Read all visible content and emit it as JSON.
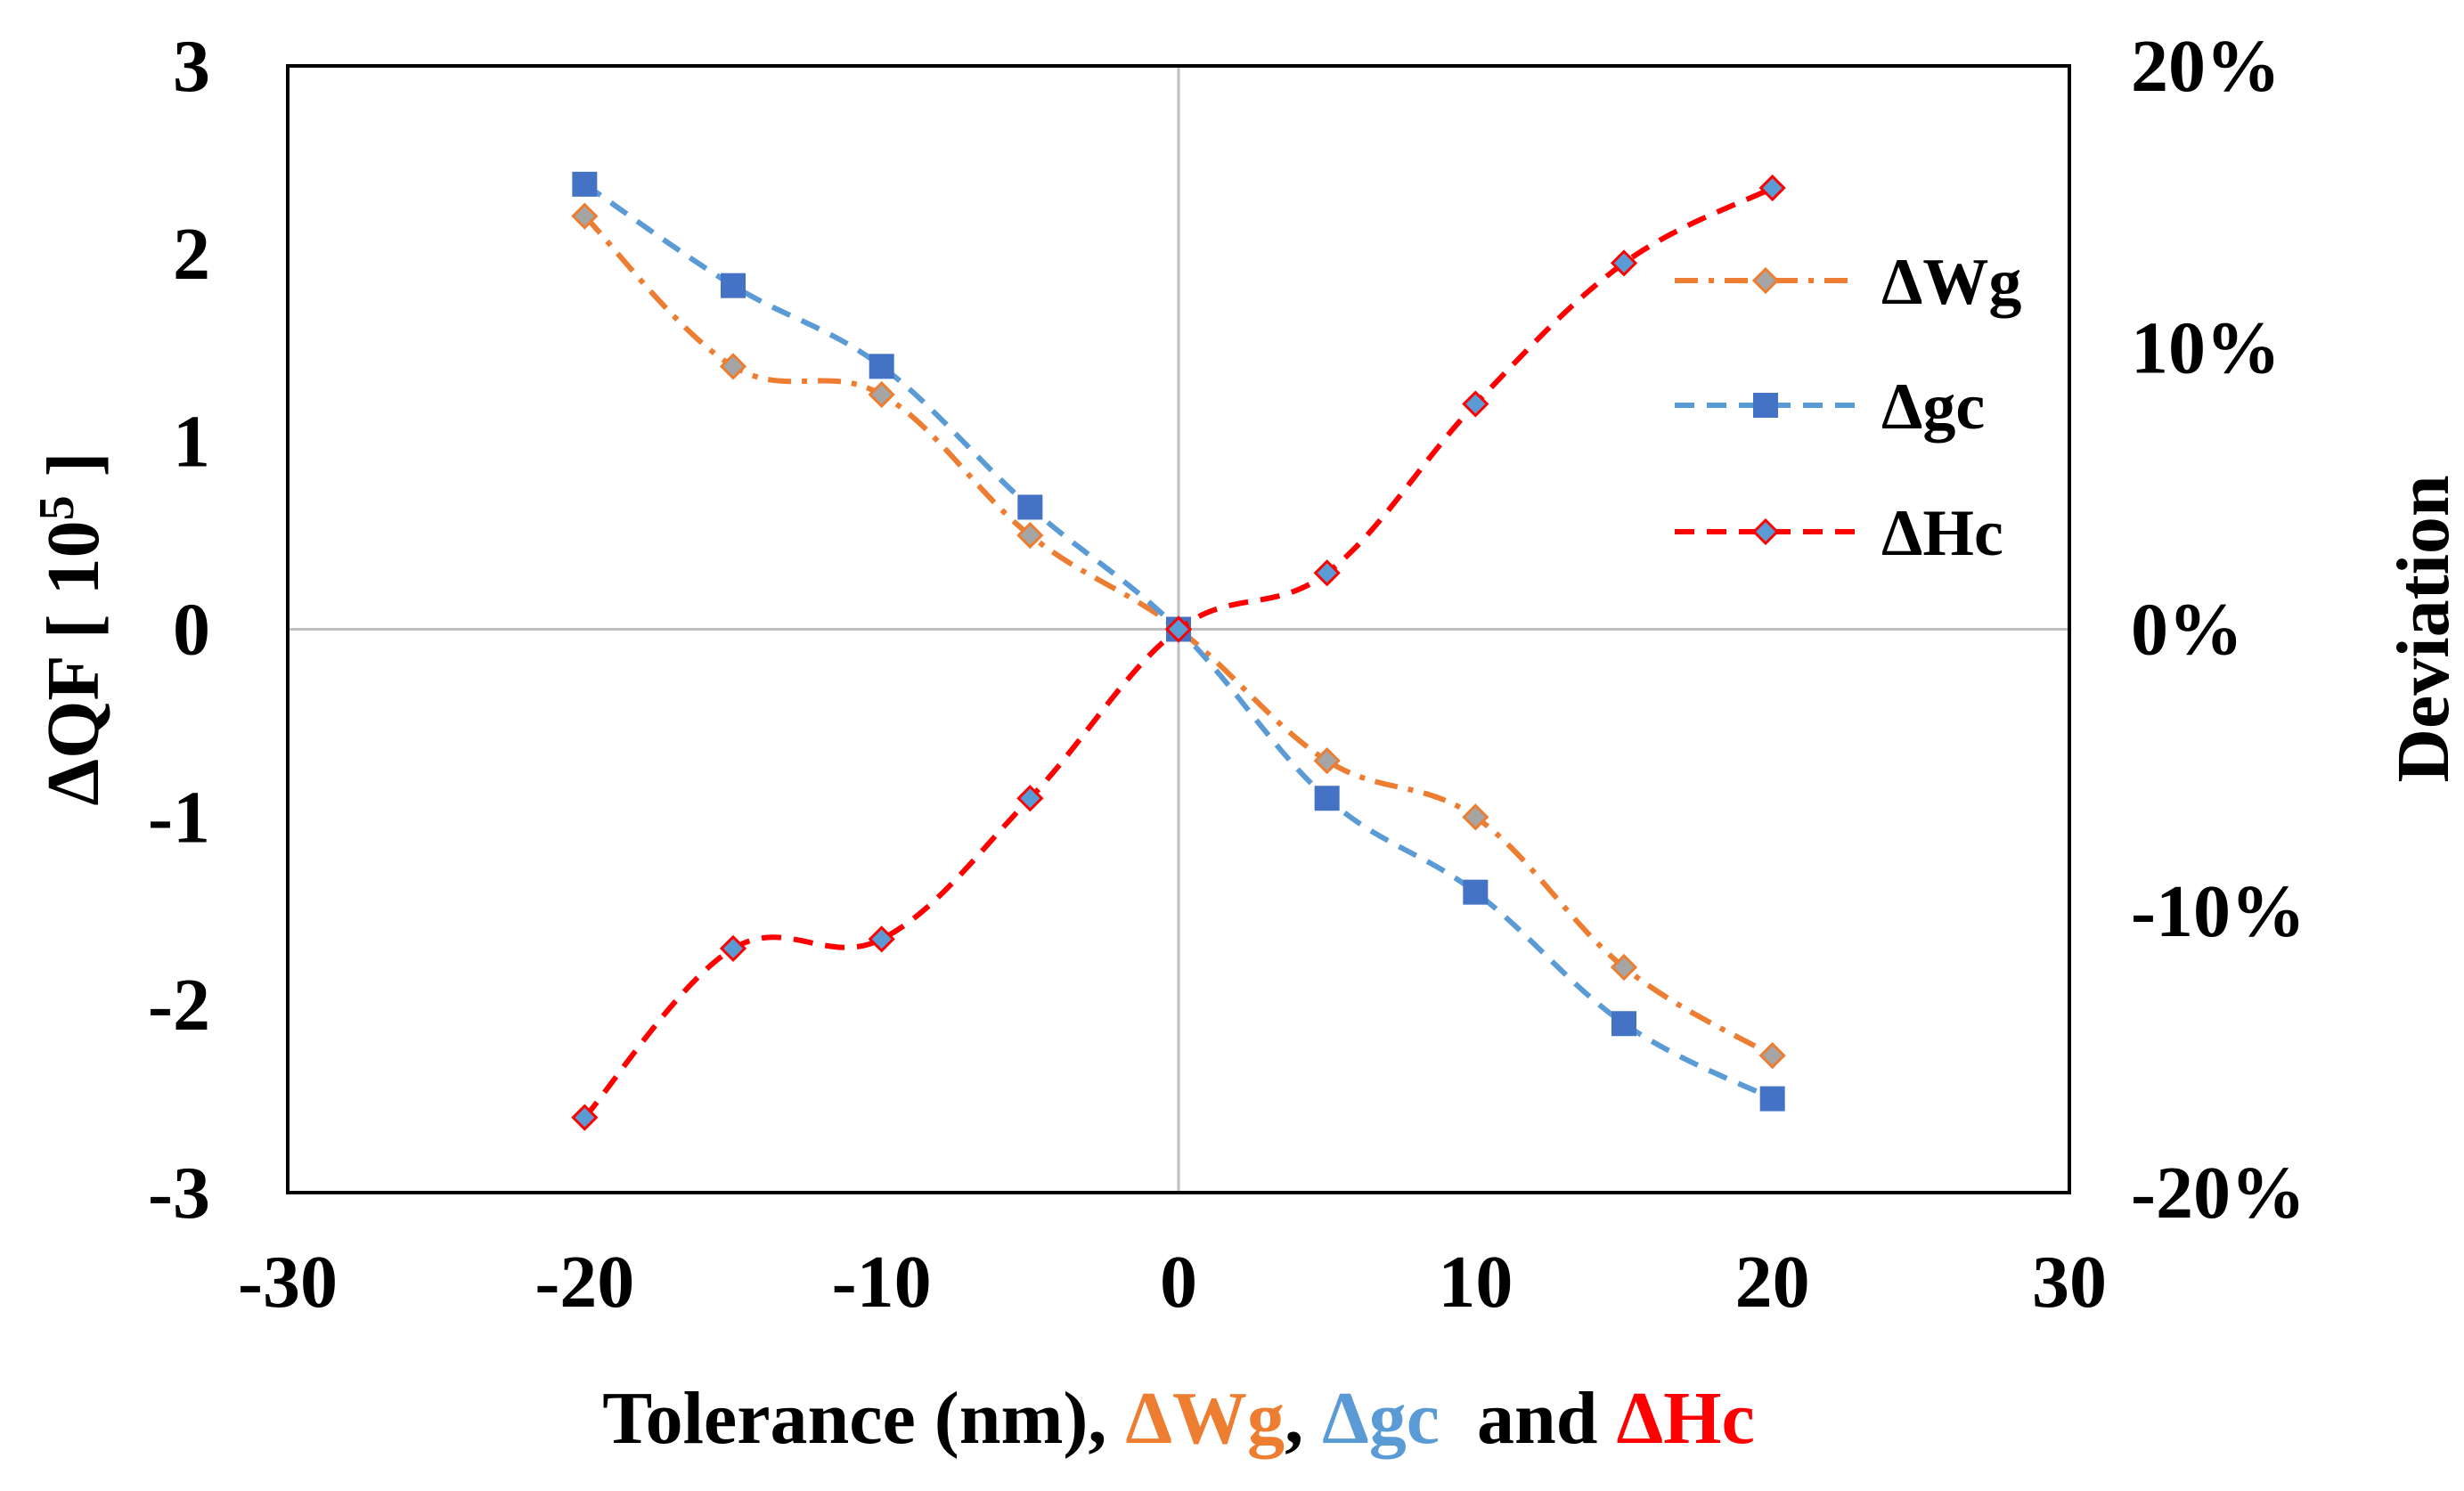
{
  "chart_data": {
    "type": "line",
    "xlabel_parts": [
      {
        "text": "Tolerance (nm), ",
        "color": "#000000"
      },
      {
        "text": "ΔWg",
        "color": "#ED7D31"
      },
      {
        "text": ", ",
        "color": "#000000"
      },
      {
        "text": "Δgc",
        "color": "#5B9BD5"
      },
      {
        "text": "  and ",
        "color": "#000000"
      },
      {
        "text": "ΔHc",
        "color": "#FF0000"
      }
    ],
    "ylabel": "ΔQF [ 10 5 ]",
    "ylabel_parts": {
      "prefix": "ΔQF [ 10",
      "superscript": "5",
      "suffix": " ]"
    },
    "y2label": "Deviation",
    "xlim": [
      -30,
      30
    ],
    "ylim": [
      -3,
      3
    ],
    "y2lim": [
      -20,
      20
    ],
    "x_ticks": [
      {
        "value": -30,
        "label": "-30"
      },
      {
        "value": -20,
        "label": "-20"
      },
      {
        "value": -10,
        "label": "-10"
      },
      {
        "value": 0,
        "label": "0"
      },
      {
        "value": 10,
        "label": "10"
      },
      {
        "value": 20,
        "label": "20"
      },
      {
        "value": 30,
        "label": "30"
      }
    ],
    "y_ticks": [
      {
        "value": 3,
        "label": "3"
      },
      {
        "value": 2,
        "label": "2"
      },
      {
        "value": 1,
        "label": "1"
      },
      {
        "value": 0,
        "label": "0"
      },
      {
        "value": -1,
        "label": "-1"
      },
      {
        "value": -2,
        "label": "-2"
      },
      {
        "value": -3,
        "label": "-3"
      }
    ],
    "y2_ticks": [
      {
        "value": 20,
        "label": "20%"
      },
      {
        "value": 10,
        "label": "10%"
      },
      {
        "value": 0,
        "label": "0%"
      },
      {
        "value": -10,
        "label": "-10%"
      },
      {
        "value": -20,
        "label": "-20%"
      }
    ],
    "legend_position": "top-right",
    "series": [
      {
        "name": "ΔWg",
        "color": "#ED7D31",
        "marker": "diamond",
        "marker_fill": "#A5A5A5",
        "marker_stroke": "#ED7D31",
        "dash": "dashdot",
        "x": [
          -20,
          -15,
          -10,
          -5,
          0,
          5,
          10,
          15,
          20
        ],
        "y": [
          2.2,
          1.4,
          1.25,
          0.5,
          0,
          -0.7,
          -1.0,
          -1.8,
          -2.27
        ]
      },
      {
        "name": "Δgc",
        "color": "#5B9BD5",
        "marker": "square",
        "marker_fill": "#4472C4",
        "marker_stroke": "#4472C4",
        "dash": "dash",
        "x": [
          -20,
          -15,
          -10,
          -5,
          0,
          5,
          10,
          15,
          20
        ],
        "y": [
          2.37,
          1.83,
          1.4,
          0.65,
          0,
          -0.9,
          -1.4,
          -2.1,
          -2.5
        ]
      },
      {
        "name": "ΔHc",
        "color": "#FF0000",
        "marker": "diamond",
        "marker_fill": "#5B9BD5",
        "marker_stroke": "#FF0000",
        "dash": "dash",
        "x": [
          -20,
          -15,
          -10,
          -5,
          0,
          5,
          10,
          15,
          20
        ],
        "y": [
          -2.6,
          -1.7,
          -1.65,
          -0.9,
          0,
          0.3,
          1.2,
          1.95,
          2.35
        ]
      }
    ]
  }
}
